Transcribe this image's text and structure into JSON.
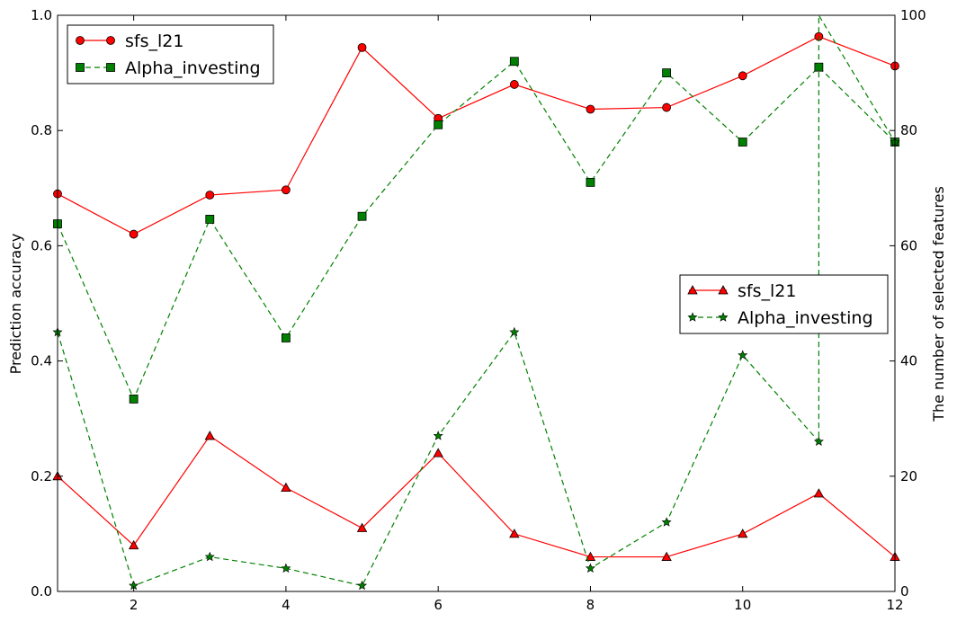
{
  "chart_data": {
    "type": "line",
    "x": [
      1,
      2,
      3,
      4,
      5,
      6,
      7,
      8,
      9,
      10,
      11,
      12
    ],
    "xlim": [
      1,
      12
    ],
    "xticks": [
      "2",
      "4",
      "6",
      "8",
      "10",
      "12"
    ],
    "grid": false,
    "left_axis": {
      "label": "Prediction accuracy",
      "ylim": [
        0,
        1
      ],
      "ticks": [
        "0.0",
        "0.2",
        "0.4",
        "0.6",
        "0.8",
        "1.0"
      ],
      "legend_position": "top-left",
      "series": [
        {
          "name": "sfs_l21",
          "color": "#ff0000",
          "marker": "circle",
          "linestyle": "solid",
          "values": [
            0.69,
            0.62,
            0.688,
            0.697,
            0.944,
            0.821,
            0.88,
            0.837,
            0.84,
            0.895,
            0.963,
            0.912
          ]
        },
        {
          "name": "Alpha_investing",
          "color": "#008000",
          "marker": "square",
          "linestyle": "dashed",
          "values": [
            0.638,
            0.334,
            0.646,
            0.44,
            0.651,
            0.81,
            0.92,
            0.71,
            0.9,
            0.78,
            0.91,
            0.78
          ]
        }
      ]
    },
    "right_axis": {
      "label": "The number of selected features",
      "ylim": [
        0,
        100
      ],
      "ticks": [
        "0",
        "20",
        "40",
        "60",
        "80",
        "100"
      ],
      "legend_position": "center-right",
      "series": [
        {
          "name": "sfs_l21",
          "color": "#ff0000",
          "marker": "triangle",
          "linestyle": "solid",
          "values": [
            20,
            8,
            27,
            18,
            11,
            24,
            10,
            6,
            6,
            10,
            17,
            6
          ]
        },
        {
          "name": "Alpha_investing",
          "color": "#008000",
          "marker": "star",
          "linestyle": "dashed",
          "values": [
            45,
            1,
            6,
            4,
            1,
            27,
            45,
            4,
            12,
            41,
            26,
            100,
            78
          ]
        },
        {
          "x": [
            1,
            2,
            3,
            4,
            5,
            6,
            7,
            8,
            9,
            10,
            11,
            11,
            12
          ]
        }
      ]
    }
  }
}
